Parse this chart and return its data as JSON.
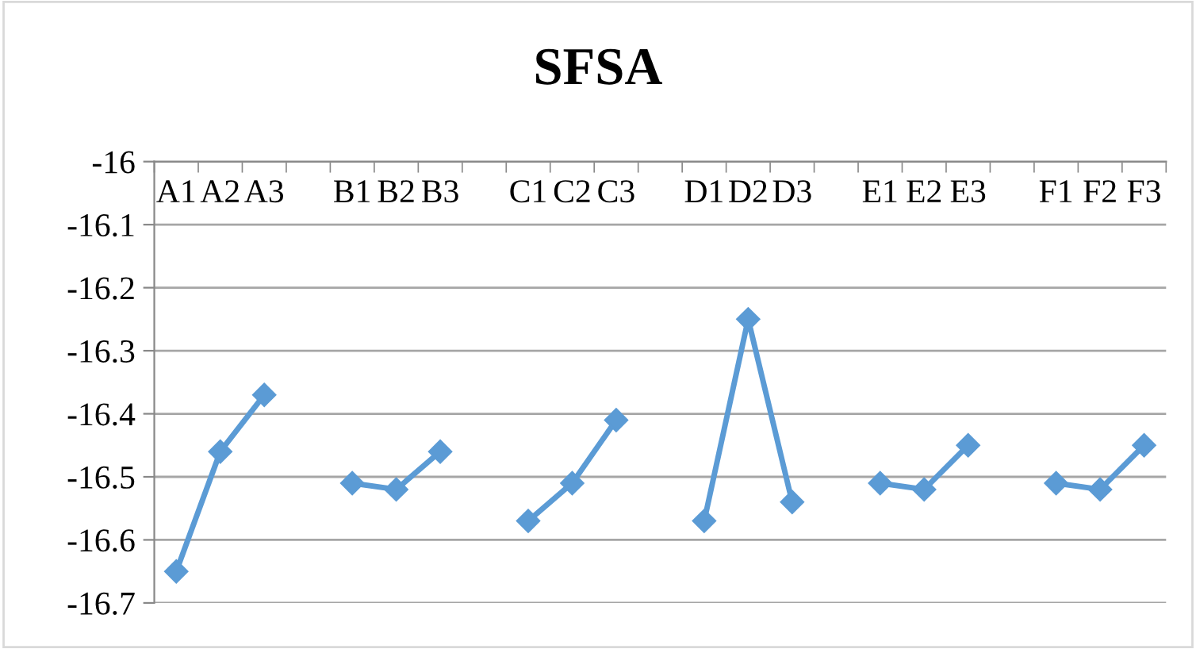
{
  "chart_data": {
    "type": "line",
    "title": "SFSA",
    "categories": [
      "A1",
      "A2",
      "A3",
      null,
      "B1",
      "B2",
      "B3",
      null,
      "C1",
      "C2",
      "C3",
      null,
      "D1",
      "D2",
      "D3",
      null,
      "E1",
      "E2",
      "E3",
      null,
      "F1",
      "F2",
      "F3"
    ],
    "series": [
      {
        "color": "#5b9bd5",
        "values": [
          -16.65,
          -16.46,
          -16.37,
          null,
          -16.51,
          -16.52,
          -16.46,
          null,
          -16.57,
          -16.51,
          -16.41,
          null,
          -16.57,
          -16.25,
          -16.54,
          null,
          -16.51,
          -16.52,
          -16.45,
          null,
          -16.51,
          -16.52,
          -16.45
        ]
      }
    ],
    "ylim": [
      -16.7,
      -16
    ],
    "yticks": [
      -16.7,
      -16.6,
      -16.5,
      -16.4,
      -16.3,
      -16.2,
      -16.1,
      -16
    ],
    "grid": "y",
    "legend": false,
    "marker": "diamond",
    "line_style": "solid"
  }
}
